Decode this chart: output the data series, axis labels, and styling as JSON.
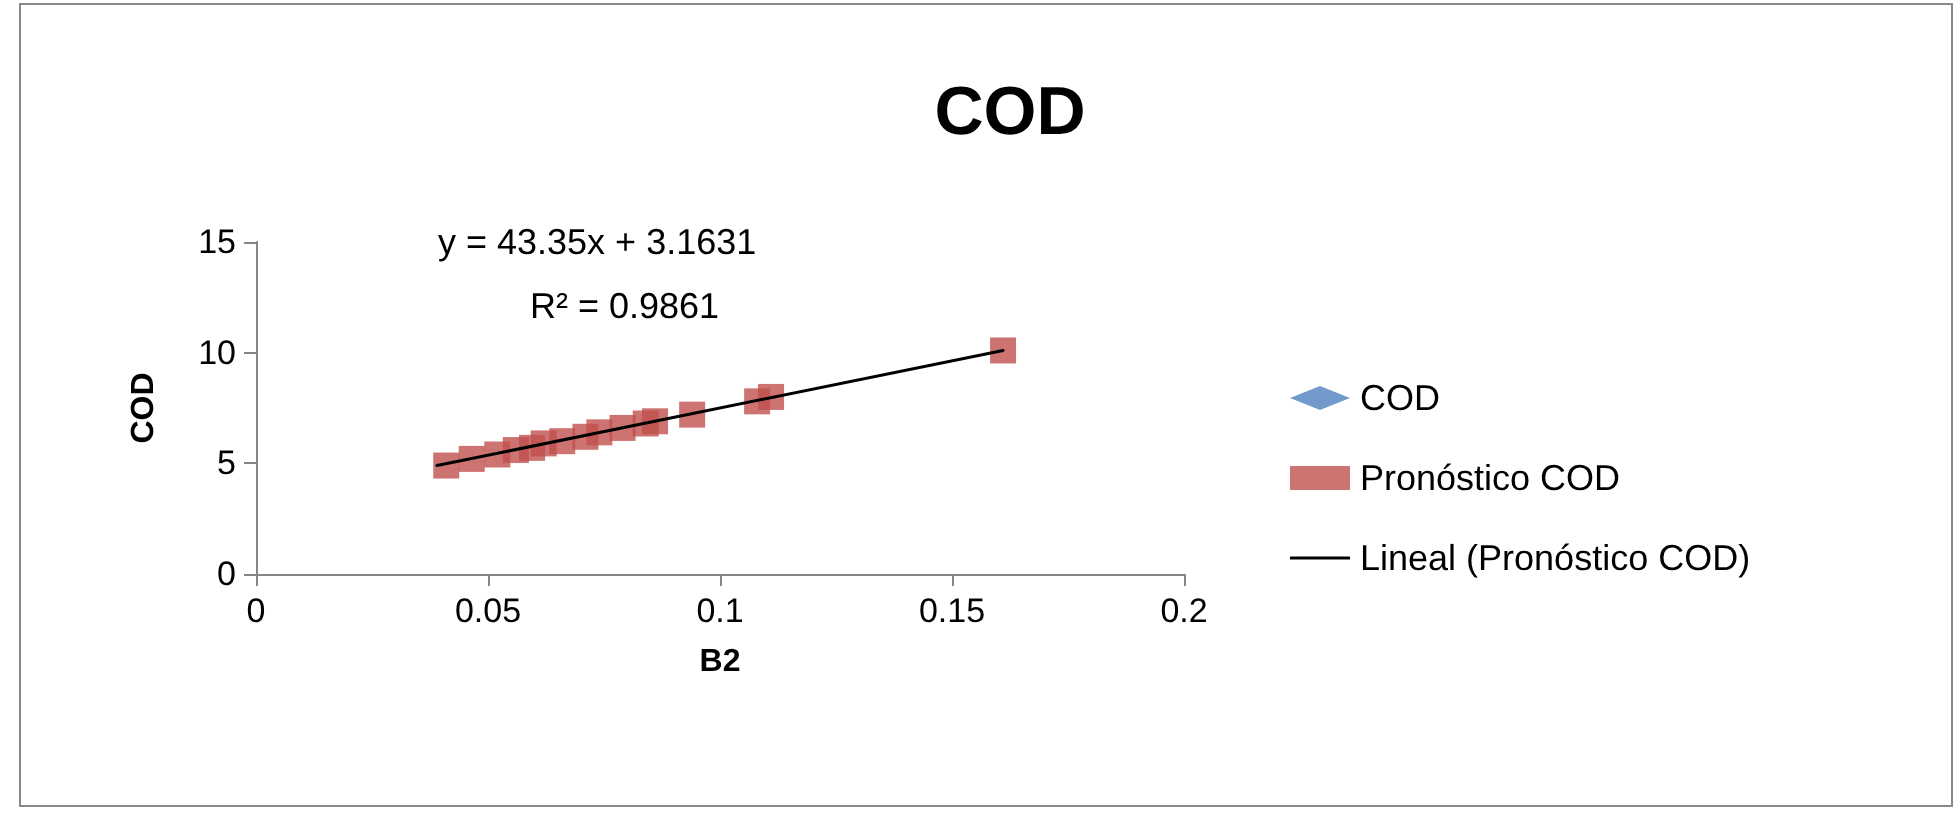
{
  "chart_data": {
    "type": "scatter",
    "title": "COD",
    "xlabel": "B2",
    "ylabel": "COD",
    "xlim": [
      0,
      0.2
    ],
    "xticks": [
      0,
      0.05,
      0.1,
      0.15,
      0.2
    ],
    "ylim": [
      0,
      15
    ],
    "yticks": [
      0,
      5,
      10,
      15
    ],
    "grid": false,
    "legend": "right",
    "annotations": [
      "y = 43.35x + 3.1631",
      "R² = 0.9861"
    ],
    "series": [
      {
        "name": "COD",
        "marker": "diamond",
        "color": "#4f81bd"
      },
      {
        "name": "Pronóstico COD",
        "marker": "square",
        "color": "#c0504d",
        "x": [
          0.041,
          0.0465,
          0.052,
          0.056,
          0.0595,
          0.062,
          0.066,
          0.071,
          0.074,
          0.079,
          0.084,
          0.086,
          0.094,
          0.108,
          0.111,
          0.161
        ],
        "values": [
          4.9,
          5.2,
          5.4,
          5.6,
          5.7,
          5.9,
          6.0,
          6.2,
          6.4,
          6.6,
          6.8,
          6.9,
          7.2,
          7.8,
          8.0,
          10.1
        ]
      },
      {
        "name": "Lineal (Pronóstico COD)",
        "type": "line",
        "marker": "none",
        "line_style": "solid",
        "color": "#000000",
        "x": [
          0.039,
          0.161
        ],
        "values": [
          4.9,
          10.1
        ]
      }
    ]
  }
}
